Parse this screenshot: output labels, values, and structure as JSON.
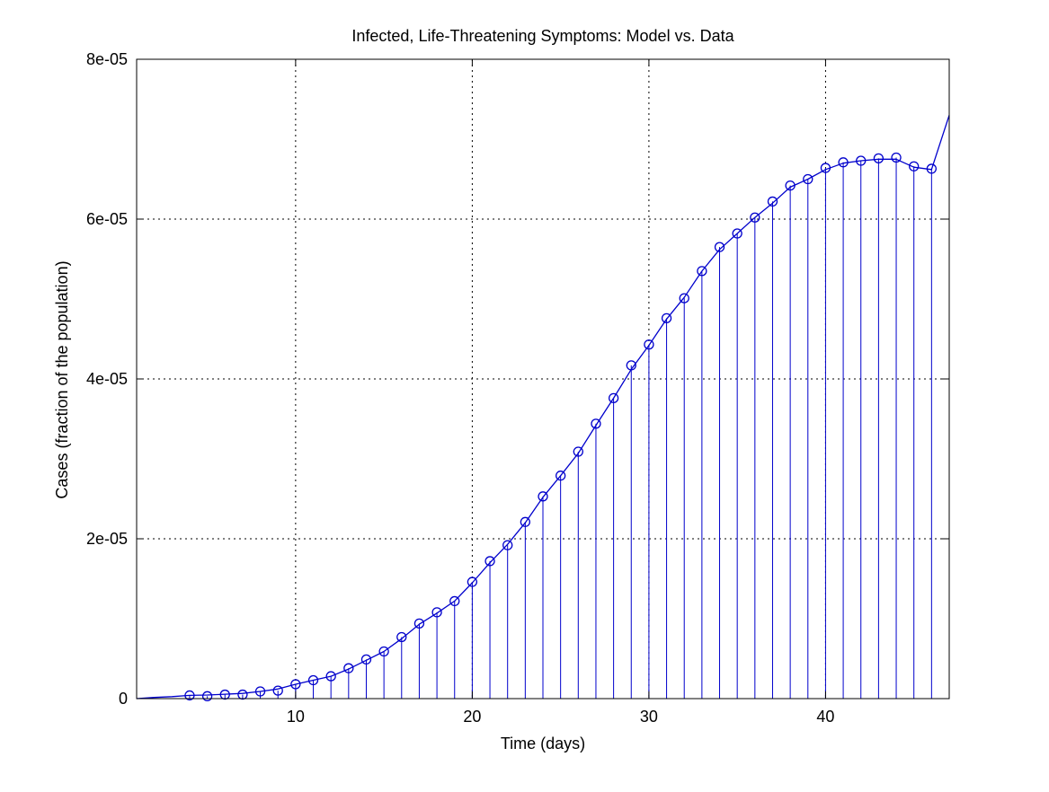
{
  "colors": {
    "series": "#0000cc",
    "axis": "#000000",
    "grid": "#000000",
    "background": "#ffffff"
  },
  "chart_data": {
    "type": "line",
    "title": "Infected, Life-Threatening Symptoms: Model vs. Data",
    "xlabel": "Time (days)",
    "ylabel": "Cases (fraction of the population)",
    "xlim": [
      1,
      47
    ],
    "ylim": [
      0,
      8e-05
    ],
    "xticks": [
      10,
      20,
      30,
      40
    ],
    "xtick_labels": [
      "10",
      "20",
      "30",
      "40"
    ],
    "yticks": [
      0,
      2e-05,
      4e-05,
      6e-05,
      8e-05
    ],
    "ytick_labels": [
      "0",
      "2e-05",
      "4e-05",
      "6e-05",
      "8e-05"
    ],
    "grid": true,
    "series": [
      {
        "type": "line",
        "x": [
          1,
          2,
          3,
          4,
          5,
          6,
          7,
          8,
          9,
          10,
          11,
          12,
          13,
          14,
          15,
          16,
          17,
          18,
          19,
          20,
          21,
          22,
          23,
          24,
          25,
          26,
          27,
          28,
          29,
          30,
          31,
          32,
          33,
          34,
          35,
          36,
          37,
          38,
          39,
          40,
          41,
          42,
          43,
          44,
          45,
          46,
          47
        ],
        "y": [
          0,
          1.5e-07,
          2.5e-07,
          4e-07,
          4.5e-07,
          5.5e-07,
          6.5e-07,
          9e-07,
          1.2e-06,
          1.8e-06,
          2.3e-06,
          2.8e-06,
          3.7e-06,
          4.8e-06,
          5.9e-06,
          7.5e-06,
          9.3e-06,
          1.07e-05,
          1.22e-05,
          1.45e-05,
          1.7e-05,
          1.93e-05,
          2.2e-05,
          2.52e-05,
          2.79e-05,
          3.07e-05,
          3.42e-05,
          3.76e-05,
          4.12e-05,
          4.42e-05,
          4.75e-05,
          5.02e-05,
          5.35e-05,
          5.62e-05,
          5.82e-05,
          6.02e-05,
          6.2e-05,
          6.4e-05,
          6.5e-05,
          6.62e-05,
          6.7e-05,
          6.73e-05,
          6.75e-05,
          6.75e-05,
          6.65e-05,
          6.62e-05,
          7.3e-05
        ]
      },
      {
        "type": "stem",
        "marker": "circle",
        "x": [
          4,
          5,
          6,
          7,
          8,
          9,
          10,
          11,
          12,
          13,
          14,
          15,
          16,
          17,
          18,
          19,
          20,
          21,
          22,
          23,
          24,
          25,
          26,
          27,
          28,
          29,
          30,
          31,
          32,
          33,
          34,
          35,
          36,
          37,
          38,
          39,
          40,
          41,
          42,
          43,
          44,
          45,
          46
        ],
        "y": [
          4e-07,
          3e-07,
          5e-07,
          5e-07,
          9e-07,
          1e-06,
          1.8e-06,
          2.3e-06,
          2.8e-06,
          3.8e-06,
          4.9e-06,
          5.9e-06,
          7.7e-06,
          9.4e-06,
          1.08e-05,
          1.22e-05,
          1.46e-05,
          1.72e-05,
          1.92e-05,
          2.21e-05,
          2.53e-05,
          2.79e-05,
          3.09e-05,
          3.44e-05,
          3.76e-05,
          4.17e-05,
          4.43e-05,
          4.76e-05,
          5.01e-05,
          5.35e-05,
          5.65e-05,
          5.82e-05,
          6.02e-05,
          6.22e-05,
          6.42e-05,
          6.5e-05,
          6.64e-05,
          6.71e-05,
          6.73e-05,
          6.76e-05,
          6.77e-05,
          6.66e-05,
          6.63e-05
        ]
      }
    ]
  }
}
